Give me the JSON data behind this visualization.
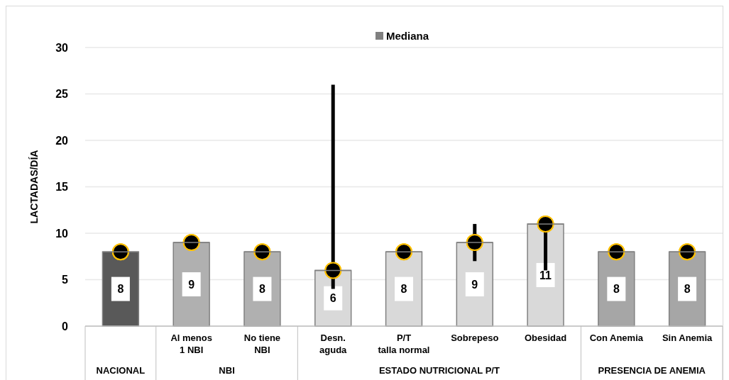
{
  "chart_data": {
    "type": "bar",
    "ylabel": "LACTADAS/DÍA",
    "categories": [
      null,
      "Al menos\n1 NBI",
      "No tiene\nNBI",
      "Desn.\naguda",
      "P/T\ntalla normal",
      "Sobrepeso",
      "Obesidad",
      "Con Anemia",
      "Sin Anemia"
    ],
    "series": [
      {
        "name": "Mediana",
        "color": "#808080",
        "colors": [
          "#595959",
          "#b0b0b0",
          "#b0b0b0",
          "#d9d9d9",
          "#d9d9d9",
          "#d9d9d9",
          "#d9d9d9",
          "#a6a6a6",
          "#a6a6a6"
        ],
        "values": [
          8,
          9,
          8,
          6,
          8,
          9,
          11,
          8,
          8
        ],
        "value_labels": [
          "8",
          "9",
          "8",
          "6",
          "8",
          "9",
          "11",
          "8",
          "8"
        ],
        "errors": [
          null,
          null,
          null,
          [
            4,
            26
          ],
          null,
          [
            7,
            11
          ],
          [
            6,
            11
          ],
          null,
          null
        ]
      },
      {
        "type": "scatter",
        "color": "#000000",
        "values": [
          8,
          9,
          8,
          6,
          8,
          9,
          11,
          8,
          8
        ]
      }
    ],
    "annotations": [
      "NACIONAL",
      "NBI",
      "ESTADO NUTRICIONAL P/T",
      "PRESENCIA DE ANEMIA"
    ],
    "ylim": [
      0,
      30
    ],
    "yticks": [
      0,
      5,
      10,
      15,
      20,
      25,
      30
    ],
    "grid": "y",
    "legend": "top",
    "marker": "circle"
  }
}
